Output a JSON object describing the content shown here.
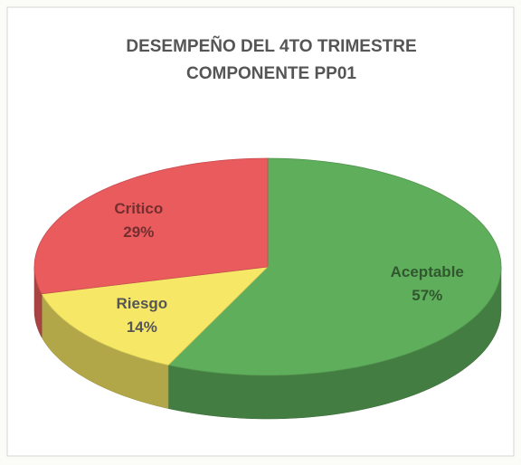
{
  "chart_data": {
    "type": "pie3d",
    "title": [
      "DESEMPEÑO DEL 4TO TRIMESTRE",
      "COMPONENTE PP01"
    ],
    "categories": [
      "Aceptable",
      "Riesgo",
      "Critico"
    ],
    "values": [
      57,
      14,
      29
    ],
    "value_labels": [
      "57%",
      "14%",
      "29%"
    ],
    "colors": [
      "#5fae5c",
      "#f6e866",
      "#e95b5d"
    ]
  }
}
